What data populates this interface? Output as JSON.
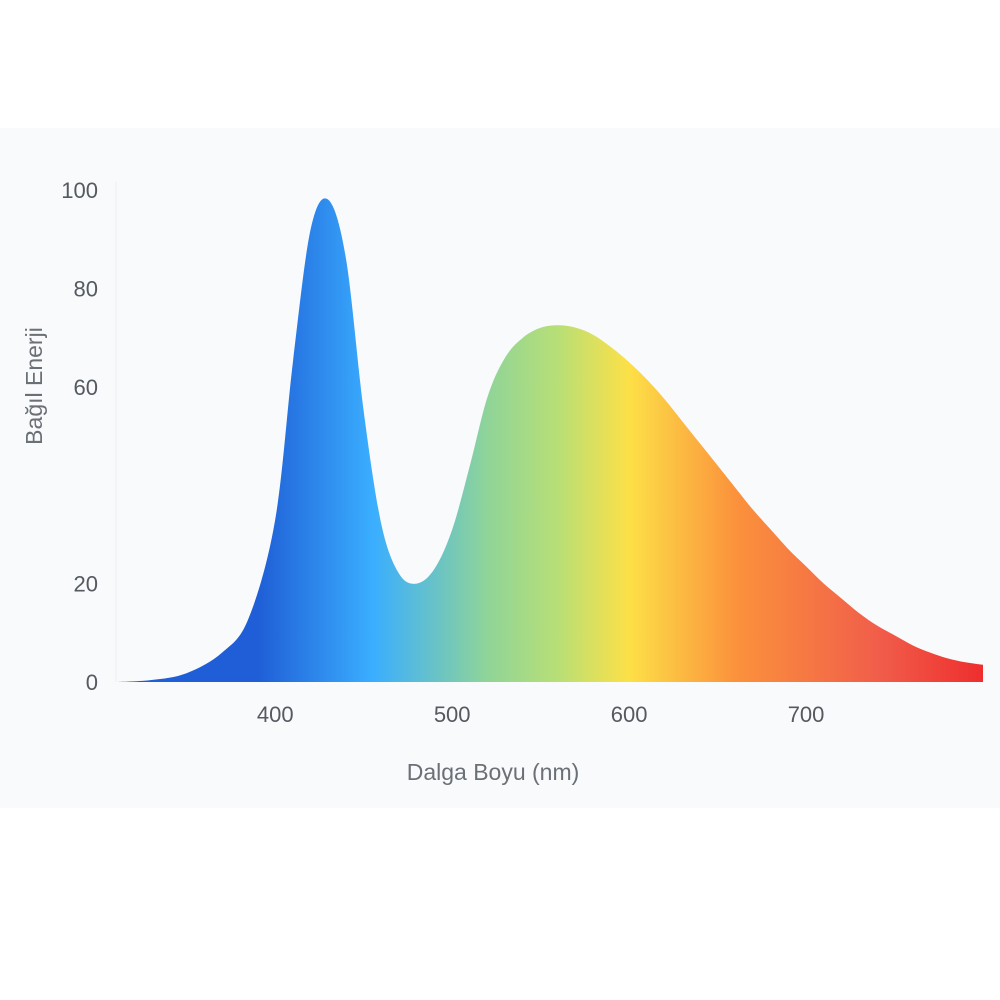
{
  "chart_data": {
    "type": "area",
    "title": "",
    "xlabel": "Dalga Boyu (nm)",
    "ylabel": "Bağıl Enerji",
    "xlim": [
      310,
      800
    ],
    "ylim": [
      0,
      100
    ],
    "x_ticks": [
      400,
      500,
      600,
      700
    ],
    "y_ticks": [
      0,
      20,
      60,
      80,
      100
    ],
    "grid": false,
    "legend": "none",
    "series": [
      {
        "x": [
          310,
          330,
          350,
          370,
          385,
          400,
          410,
          420,
          430,
          440,
          450,
          460,
          470,
          480,
          490,
          500,
          510,
          520,
          530,
          540,
          550,
          560,
          570,
          580,
          590,
          600,
          610,
          620,
          630,
          640,
          650,
          660,
          670,
          680,
          690,
          700,
          710,
          720,
          730,
          740,
          750,
          760,
          770,
          780,
          790,
          800
        ],
        "values": [
          0,
          0.4,
          1.8,
          6,
          13,
          33,
          65,
          92,
          98,
          86,
          55,
          32,
          22,
          20,
          23,
          31,
          44,
          58,
          66,
          70,
          72,
          72.5,
          72,
          70.5,
          68,
          65,
          61.5,
          57.5,
          53,
          48.5,
          44,
          39.5,
          35,
          31,
          27,
          23.5,
          20,
          17,
          14,
          11.5,
          9.5,
          7.5,
          6,
          4.8,
          4,
          3.5
        ]
      }
    ],
    "gradient": [
      {
        "x": 390,
        "color": "#1f5ed6"
      },
      {
        "x": 455,
        "color": "#3aaeff"
      },
      {
        "x": 520,
        "color": "#8fd498"
      },
      {
        "x": 560,
        "color": "#b8df76"
      },
      {
        "x": 600,
        "color": "#fde047"
      },
      {
        "x": 660,
        "color": "#fb923c"
      },
      {
        "x": 740,
        "color": "#f15e4a"
      },
      {
        "x": 800,
        "color": "#ee2e2e"
      }
    ]
  }
}
